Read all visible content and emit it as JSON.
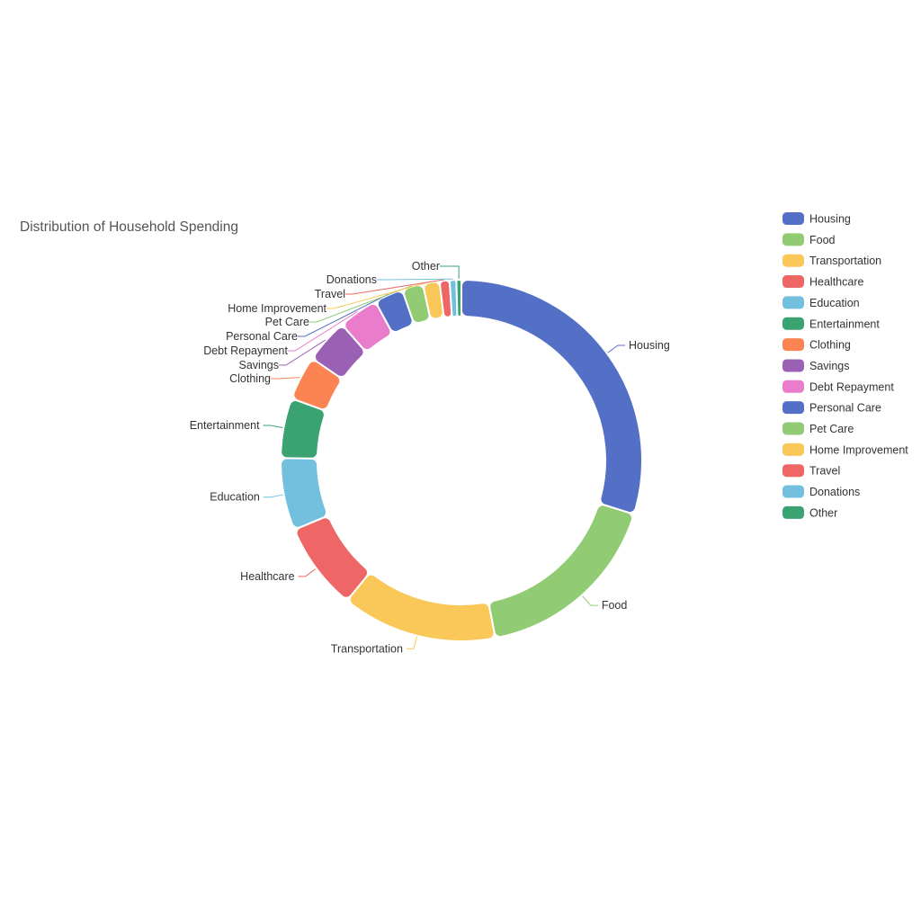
{
  "page": {
    "background": "#ffffff"
  },
  "chart_data": {
    "type": "pie",
    "subtype": "donut",
    "title": "Distribution of Household Spending",
    "categories": [
      "Housing",
      "Food",
      "Transportation",
      "Healthcare",
      "Education",
      "Entertainment",
      "Clothing",
      "Savings",
      "Debt Repayment",
      "Personal Care",
      "Pet Care",
      "Home Improvement",
      "Travel",
      "Donations",
      "Other"
    ],
    "values": [
      30,
      17.3,
      14.0,
      7.9,
      6.5,
      5.4,
      4.0,
      4.0,
      3.6,
      2.6,
      1.9,
      1.5,
      0.9,
      0.6,
      0.45
    ],
    "values_note": "No numeric labels are rendered in the chart; values are percentages estimated from slice angles.",
    "palette": [
      "#5470c6",
      "#91cc75",
      "#fac858",
      "#ee6666",
      "#73c0de",
      "#3ba272",
      "#fc8452",
      "#9a60b4",
      "#ea7ccc"
    ],
    "legend_position": "right",
    "legend_items": [
      "Housing",
      "Food",
      "Transportation",
      "Healthcare",
      "Education",
      "Entertainment",
      "Clothing",
      "Savings",
      "Debt Repayment",
      "Personal Care",
      "Pet Care",
      "Home Improvement",
      "Travel",
      "Donations",
      "Other"
    ],
    "title_color": "#545454",
    "label_color": "#333333",
    "background": "#ffffff"
  }
}
